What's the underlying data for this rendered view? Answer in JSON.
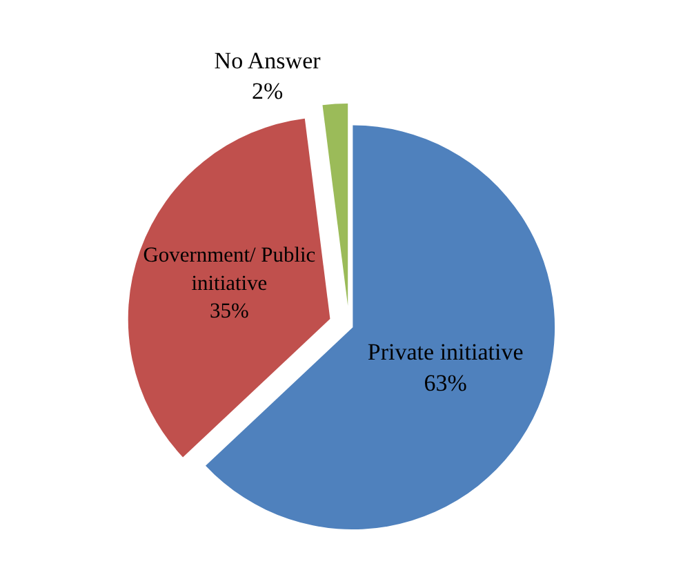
{
  "chart_data": {
    "type": "pie",
    "categories": [
      "Private initiative",
      "Government/ Public initiative",
      "No Answer"
    ],
    "values": [
      63,
      35,
      2
    ],
    "value_labels": [
      "63%",
      "35%",
      "2%"
    ],
    "colors": [
      "#4f81bd",
      "#c0504d",
      "#9bbb59"
    ],
    "legend": false
  }
}
